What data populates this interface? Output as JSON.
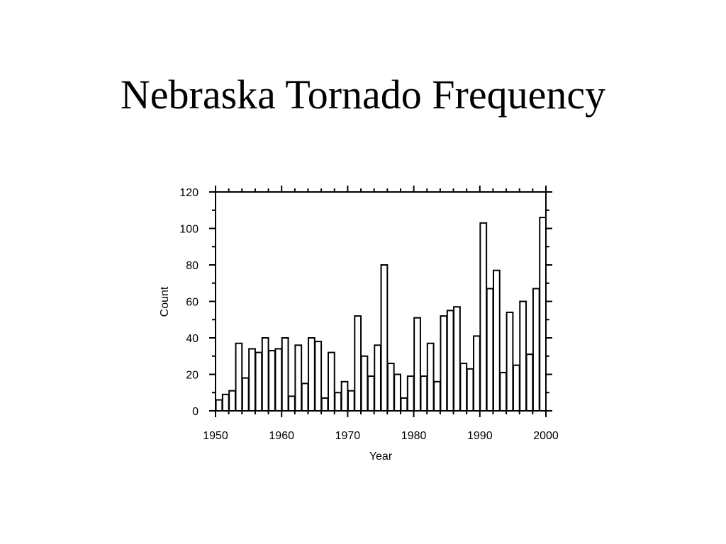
{
  "slide": {
    "title": "Nebraska Tornado Frequency"
  },
  "chart_data": {
    "type": "bar",
    "title": "Nebraska Tornado Frequency",
    "xlabel": "Year",
    "ylabel": "Count",
    "xlim": [
      1950,
      2000
    ],
    "ylim": [
      0,
      120
    ],
    "x_ticks": [
      1950,
      1960,
      1970,
      1980,
      1990,
      2000
    ],
    "y_ticks": [
      0,
      20,
      40,
      60,
      80,
      100,
      120
    ],
    "x": [
      1950,
      1951,
      1952,
      1953,
      1954,
      1955,
      1956,
      1957,
      1958,
      1959,
      1960,
      1961,
      1962,
      1963,
      1964,
      1965,
      1966,
      1967,
      1968,
      1969,
      1970,
      1971,
      1972,
      1973,
      1974,
      1975,
      1976,
      1977,
      1978,
      1979,
      1980,
      1981,
      1982,
      1983,
      1984,
      1985,
      1986,
      1987,
      1988,
      1989,
      1990,
      1991,
      1992,
      1993,
      1994,
      1995,
      1996,
      1997,
      1998,
      1999
    ],
    "values": [
      6,
      9,
      11,
      37,
      18,
      34,
      32,
      40,
      33,
      34,
      40,
      8,
      36,
      15,
      40,
      38,
      7,
      32,
      10,
      16,
      11,
      52,
      30,
      19,
      36,
      80,
      26,
      20,
      7,
      19,
      51,
      19,
      37,
      16,
      52,
      55,
      57,
      26,
      23,
      41,
      103,
      67,
      77,
      21,
      54,
      25,
      60,
      31,
      67,
      106
    ],
    "grid": false,
    "bar_fill": "#ffffff",
    "bar_stroke": "#000000"
  }
}
